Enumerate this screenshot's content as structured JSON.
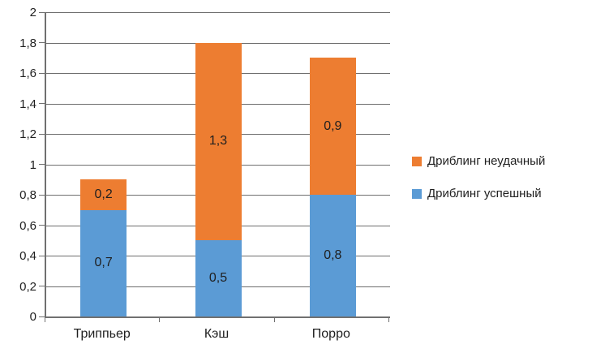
{
  "chart_data": {
    "type": "bar",
    "stacked": true,
    "title": "",
    "xlabel": "",
    "ylabel": "",
    "categories": [
      "Триппьер",
      "Кэш",
      "Порро"
    ],
    "series": [
      {
        "name": "Дриблинг успешный",
        "color": "#5B9BD5",
        "values": [
          0.7,
          0.5,
          0.8
        ],
        "labels": [
          "0,7",
          "0,5",
          "0,8"
        ]
      },
      {
        "name": "Дриблинг неудачный",
        "color": "#ED7D31",
        "values": [
          0.2,
          1.3,
          0.9
        ],
        "labels": [
          "0,2",
          "1,3",
          "0,9"
        ]
      }
    ],
    "ylim": [
      0,
      2
    ],
    "ytick_step": 0.2,
    "yticks": [
      "0",
      "0,2",
      "0,4",
      "0,6",
      "0,8",
      "1",
      "1,2",
      "1,4",
      "1,6",
      "1,8",
      "2"
    ],
    "grid": true,
    "legend_position": "right",
    "legend_order_reversed": true
  },
  "colors": {
    "axis": "#707070",
    "gridline": "#6e6e6e",
    "text": "#1f1f1f",
    "background": "#ffffff",
    "series_successful": "#5B9BD5",
    "series_unsuccessful": "#ED7D31"
  }
}
